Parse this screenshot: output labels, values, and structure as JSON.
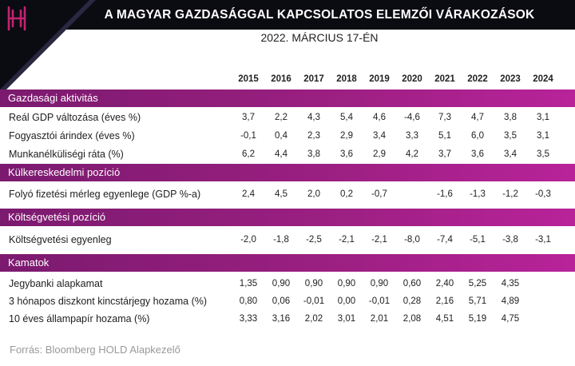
{
  "header": {
    "title": "A MAGYAR GAZDASÁGGAL KAPCSOLATOS ELEMZŐI VÁRAKOZÁSOK",
    "subtitle": "2022. MÁRCIUS 17-ÉN",
    "logo_icon": "hold-h-logo-icon",
    "accent_color": "#c0246f"
  },
  "years": [
    "2015",
    "2016",
    "2017",
    "2018",
    "2019",
    "2020",
    "2021",
    "2022",
    "2023",
    "2024"
  ],
  "sections": [
    {
      "title": "Gazdasági aktivitás",
      "rows": [
        {
          "label": "Reál GDP változása (éves %)",
          "values": [
            "3,7",
            "2,2",
            "4,3",
            "5,4",
            "4,6",
            "-4,6",
            "7,3",
            "4,7",
            "3,8",
            "3,1"
          ]
        },
        {
          "label": "Fogyasztói árindex (éves %)",
          "values": [
            "-0,1",
            "0,4",
            "2,3",
            "2,9",
            "3,4",
            "3,3",
            "5,1",
            "6,0",
            "3,5",
            "3,1"
          ]
        },
        {
          "label": "Munkanélküliségi ráta (%)",
          "values": [
            "6,2",
            "4,4",
            "3,8",
            "3,6",
            "2,9",
            "4,2",
            "3,7",
            "3,6",
            "3,4",
            "3,5"
          ]
        }
      ]
    },
    {
      "title": "Külkereskedelmi pozíció",
      "rows": [
        {
          "label": "Folyó fizetési mérleg egyenlege (GDP %-a)",
          "values": [
            "2,4",
            "4,5",
            "2,0",
            "0,2",
            "-0,7",
            "",
            "-1,6",
            "-1,3",
            "-1,2",
            "-0,3"
          ]
        }
      ]
    },
    {
      "title": "Költségvetési pozíció",
      "rows": [
        {
          "label": "Költségvetési egyenleg",
          "values": [
            "-2,0",
            "-1,8",
            "-2,5",
            "-2,1",
            "-2,1",
            "-8,0",
            "-7,4",
            "-5,1",
            "-3,8",
            "-3,1"
          ]
        }
      ]
    },
    {
      "title": "Kamatok",
      "rows": [
        {
          "label": "Jegybanki alapkamat",
          "values": [
            "1,35",
            "0,90",
            "0,90",
            "0,90",
            "0,90",
            "0,60",
            "2,40",
            "5,25",
            "4,35",
            ""
          ]
        },
        {
          "label": "3 hónapos diszkont kincstárjegy hozama (%)",
          "values": [
            "0,80",
            "0,06",
            "-0,01",
            "0,00",
            "-0,01",
            "0,28",
            "2,16",
            "5,71",
            "4,89",
            ""
          ]
        },
        {
          "label": "10 éves állampapír hozama (%)",
          "values": [
            "3,33",
            "3,16",
            "2,02",
            "3,01",
            "2,01",
            "2,08",
            "4,51",
            "5,19",
            "4,75",
            ""
          ]
        }
      ]
    }
  ],
  "source": "Forrás: Bloomberg HOLD Alapkezelő"
}
